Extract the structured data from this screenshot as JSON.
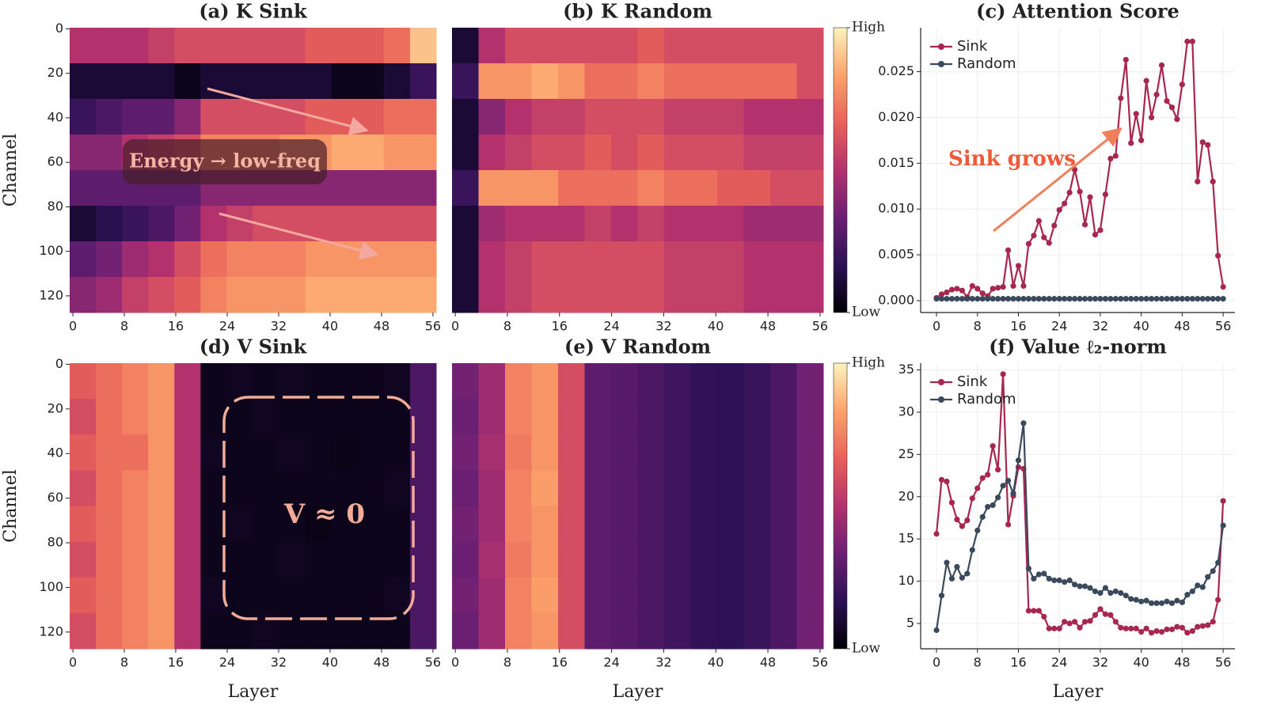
{
  "chart_data": [
    {
      "type": "heatmap",
      "title": "(a) K Sink",
      "ylabel": "Channel",
      "annotation": "Energy → low-freq",
      "xlim": [
        -0.5,
        56.5
      ],
      "ylim": [
        -0.5,
        127.5
      ],
      "y_inverted": true,
      "xticks": [
        0,
        8,
        16,
        24,
        32,
        40,
        48,
        56
      ],
      "yticks": [
        0,
        20,
        40,
        60,
        80,
        100,
        120
      ],
      "zlim": [
        0,
        1
      ],
      "colorscale": [
        "#000004",
        "#2c1155",
        "#6b1f73",
        "#b3326e",
        "#e8615a",
        "#fca26a",
        "#fcf3bd"
      ],
      "z": [
        [
          0.5,
          0.5,
          0.5,
          0.55,
          0.6,
          0.6,
          0.6,
          0.6,
          0.6,
          0.65,
          0.65,
          0.65,
          0.7,
          0.9
        ],
        [
          0.1,
          0.1,
          0.1,
          0.1,
          0.05,
          0.1,
          0.1,
          0.1,
          0.1,
          0.1,
          0.05,
          0.05,
          0.1,
          0.2
        ],
        [
          0.2,
          0.25,
          0.3,
          0.3,
          0.4,
          0.6,
          0.6,
          0.6,
          0.6,
          0.65,
          0.65,
          0.65,
          0.7,
          0.7
        ],
        [
          0.4,
          0.4,
          0.5,
          0.55,
          0.6,
          0.75,
          0.75,
          0.75,
          0.8,
          0.8,
          0.85,
          0.85,
          0.8,
          0.8
        ],
        [
          0.3,
          0.3,
          0.3,
          0.3,
          0.3,
          0.4,
          0.4,
          0.4,
          0.4,
          0.4,
          0.4,
          0.4,
          0.4,
          0.4
        ],
        [
          0.1,
          0.15,
          0.2,
          0.25,
          0.35,
          0.5,
          0.55,
          0.6,
          0.6,
          0.6,
          0.6,
          0.6,
          0.6,
          0.6
        ],
        [
          0.3,
          0.35,
          0.45,
          0.5,
          0.6,
          0.7,
          0.75,
          0.75,
          0.75,
          0.8,
          0.8,
          0.8,
          0.8,
          0.8
        ],
        [
          0.4,
          0.45,
          0.55,
          0.6,
          0.65,
          0.75,
          0.8,
          0.8,
          0.8,
          0.85,
          0.85,
          0.85,
          0.85,
          0.85
        ]
      ]
    },
    {
      "type": "heatmap",
      "title": "(b) K Random",
      "xlim": [
        -0.5,
        56.5
      ],
      "ylim": [
        -0.5,
        127.5
      ],
      "y_inverted": true,
      "xticks": [
        0,
        8,
        16,
        24,
        32,
        40,
        48,
        56
      ],
      "zlim": [
        0,
        1
      ],
      "colorscale": [
        "#000004",
        "#2c1155",
        "#6b1f73",
        "#b3326e",
        "#e8615a",
        "#fca26a",
        "#fcf3bd"
      ],
      "colorbar_ticks": [
        {
          "value": 1,
          "label": "High"
        },
        {
          "value": 0,
          "label": "Low"
        }
      ],
      "z": [
        [
          0.1,
          0.5,
          0.6,
          0.6,
          0.6,
          0.6,
          0.6,
          0.65,
          0.6,
          0.6,
          0.6,
          0.6,
          0.6,
          0.6
        ],
        [
          0.2,
          0.8,
          0.8,
          0.85,
          0.8,
          0.7,
          0.7,
          0.75,
          0.7,
          0.7,
          0.7,
          0.7,
          0.7,
          0.6
        ],
        [
          0.1,
          0.4,
          0.5,
          0.55,
          0.55,
          0.6,
          0.6,
          0.6,
          0.55,
          0.55,
          0.55,
          0.5,
          0.5,
          0.5
        ],
        [
          0.1,
          0.5,
          0.55,
          0.6,
          0.6,
          0.65,
          0.6,
          0.65,
          0.6,
          0.6,
          0.6,
          0.55,
          0.55,
          0.55
        ],
        [
          0.2,
          0.8,
          0.8,
          0.8,
          0.7,
          0.7,
          0.7,
          0.75,
          0.7,
          0.7,
          0.65,
          0.65,
          0.6,
          0.6
        ],
        [
          0.1,
          0.45,
          0.5,
          0.5,
          0.5,
          0.55,
          0.5,
          0.55,
          0.5,
          0.5,
          0.5,
          0.45,
          0.45,
          0.45
        ],
        [
          0.1,
          0.5,
          0.55,
          0.6,
          0.6,
          0.6,
          0.6,
          0.6,
          0.55,
          0.55,
          0.55,
          0.5,
          0.5,
          0.5
        ],
        [
          0.1,
          0.5,
          0.55,
          0.6,
          0.6,
          0.6,
          0.6,
          0.6,
          0.55,
          0.55,
          0.55,
          0.5,
          0.5,
          0.5
        ]
      ]
    },
    {
      "type": "line",
      "title": "(c) Attention Score",
      "annotation": "Sink grows",
      "legend": "upper left",
      "grid": true,
      "xlim": [
        -3.1,
        58.3
      ],
      "ylim": [
        -0.0013,
        0.0298
      ],
      "xticks": [
        0,
        8,
        16,
        24,
        32,
        40,
        48,
        56
      ],
      "yticks": [
        {
          "value": 0,
          "label": "0.000"
        },
        {
          "value": 0.005,
          "label": "0.005"
        },
        {
          "value": 0.01,
          "label": "0.010"
        },
        {
          "value": 0.015,
          "label": "0.015"
        },
        {
          "value": 0.02,
          "label": "0.020"
        },
        {
          "value": 0.025,
          "label": "0.025"
        }
      ],
      "x": [
        0,
        1,
        2,
        3,
        4,
        5,
        6,
        7,
        8,
        9,
        10,
        11,
        12,
        13,
        14,
        15,
        16,
        17,
        18,
        19,
        20,
        21,
        22,
        23,
        24,
        25,
        26,
        27,
        28,
        29,
        30,
        31,
        32,
        33,
        34,
        35,
        36,
        37,
        38,
        39,
        40,
        41,
        42,
        43,
        44,
        45,
        46,
        47,
        48,
        49,
        50,
        51,
        52,
        53,
        54,
        55,
        56
      ],
      "series": [
        {
          "name": "Sink",
          "color": "#a8274e",
          "values": [
            0.0003,
            0.0007,
            0.0009,
            0.0012,
            0.0013,
            0.0011,
            0.0004,
            0.0016,
            0.0013,
            0.0008,
            0.0005,
            0.0013,
            0.0014,
            0.0015,
            0.0055,
            0.0016,
            0.0038,
            0.0016,
            0.0062,
            0.0071,
            0.0087,
            0.0069,
            0.0063,
            0.0082,
            0.0099,
            0.0106,
            0.0118,
            0.0143,
            0.0119,
            0.0083,
            0.0113,
            0.0072,
            0.0077,
            0.0116,
            0.0155,
            0.0158,
            0.0221,
            0.0263,
            0.0172,
            0.0204,
            0.0175,
            0.024,
            0.02,
            0.0225,
            0.0257,
            0.0218,
            0.0211,
            0.0198,
            0.0236,
            0.0283,
            0.0283,
            0.013,
            0.0173,
            0.017,
            0.013,
            0.0049,
            0.0015
          ]
        },
        {
          "name": "Random",
          "color": "#3a4a5c",
          "values": [
            0.0002,
            0.0002,
            0.0002,
            0.0002,
            0.0002,
            0.0002,
            0.0002,
            0.0002,
            0.0002,
            0.0002,
            0.0002,
            0.0002,
            0.0002,
            0.0002,
            0.0002,
            0.0002,
            0.0002,
            0.0002,
            0.0002,
            0.0002,
            0.0002,
            0.0002,
            0.0002,
            0.0002,
            0.0002,
            0.0002,
            0.0002,
            0.0002,
            0.0002,
            0.0002,
            0.0002,
            0.0002,
            0.0002,
            0.0002,
            0.0002,
            0.0002,
            0.0002,
            0.0002,
            0.0002,
            0.0002,
            0.0002,
            0.0002,
            0.0002,
            0.0002,
            0.0002,
            0.0002,
            0.0002,
            0.0002,
            0.0002,
            0.0002,
            0.0002,
            0.0002,
            0.0002,
            0.0002,
            0.0002,
            0.0002,
            0.0002
          ]
        }
      ]
    },
    {
      "type": "heatmap",
      "title": "(d) V Sink",
      "ylabel": "Channel",
      "xlabel": "Layer",
      "annotation": "V ≈ 0",
      "xlim": [
        -0.5,
        56.5
      ],
      "ylim": [
        -0.5,
        127.5
      ],
      "y_inverted": true,
      "xticks": [
        0,
        8,
        16,
        24,
        32,
        40,
        48,
        56
      ],
      "yticks": [
        0,
        20,
        40,
        60,
        80,
        100,
        120
      ],
      "zlim": [
        0,
        1
      ],
      "colorscale": [
        "#000004",
        "#2c1155",
        "#6b1f73",
        "#b3326e",
        "#e8615a",
        "#fca26a",
        "#fcf3bd"
      ],
      "z": [
        [
          0.65,
          0.7,
          0.75,
          0.8,
          0.5,
          0.05,
          0.06,
          0.05,
          0.06,
          0.05,
          0.05,
          0.05,
          0.06,
          0.25
        ],
        [
          0.6,
          0.7,
          0.75,
          0.8,
          0.5,
          0.05,
          0.05,
          0.06,
          0.05,
          0.05,
          0.05,
          0.05,
          0.05,
          0.25
        ],
        [
          0.65,
          0.7,
          0.7,
          0.8,
          0.5,
          0.06,
          0.05,
          0.05,
          0.06,
          0.05,
          0.04,
          0.05,
          0.05,
          0.25
        ],
        [
          0.6,
          0.7,
          0.75,
          0.8,
          0.5,
          0.05,
          0.05,
          0.05,
          0.05,
          0.05,
          0.05,
          0.05,
          0.06,
          0.25
        ],
        [
          0.65,
          0.7,
          0.75,
          0.8,
          0.5,
          0.05,
          0.06,
          0.05,
          0.05,
          0.04,
          0.05,
          0.05,
          0.05,
          0.25
        ],
        [
          0.6,
          0.7,
          0.75,
          0.8,
          0.5,
          0.05,
          0.05,
          0.05,
          0.06,
          0.05,
          0.05,
          0.05,
          0.05,
          0.25
        ],
        [
          0.65,
          0.7,
          0.75,
          0.8,
          0.5,
          0.06,
          0.05,
          0.05,
          0.05,
          0.05,
          0.05,
          0.05,
          0.06,
          0.25
        ],
        [
          0.6,
          0.7,
          0.75,
          0.8,
          0.5,
          0.05,
          0.05,
          0.06,
          0.05,
          0.05,
          0.05,
          0.05,
          0.05,
          0.25
        ]
      ]
    },
    {
      "type": "heatmap",
      "title": "(e) V Random",
      "xlabel": "Layer",
      "xlim": [
        -0.5,
        56.5
      ],
      "ylim": [
        -0.5,
        127.5
      ],
      "y_inverted": true,
      "xticks": [
        0,
        8,
        16,
        24,
        32,
        40,
        48,
        56
      ],
      "zlim": [
        0,
        1
      ],
      "colorscale": [
        "#000004",
        "#2c1155",
        "#6b1f73",
        "#b3326e",
        "#e8615a",
        "#fca26a",
        "#fcf3bd"
      ],
      "colorbar_ticks": [
        {
          "value": 1,
          "label": "High"
        },
        {
          "value": 0,
          "label": "Low"
        }
      ],
      "z": [
        [
          0.35,
          0.45,
          0.75,
          0.8,
          0.6,
          0.3,
          0.28,
          0.25,
          0.22,
          0.18,
          0.17,
          0.2,
          0.25,
          0.35
        ],
        [
          0.33,
          0.45,
          0.75,
          0.8,
          0.6,
          0.3,
          0.28,
          0.25,
          0.22,
          0.18,
          0.17,
          0.2,
          0.25,
          0.35
        ],
        [
          0.35,
          0.47,
          0.73,
          0.8,
          0.6,
          0.3,
          0.28,
          0.25,
          0.22,
          0.18,
          0.17,
          0.2,
          0.25,
          0.35
        ],
        [
          0.33,
          0.45,
          0.75,
          0.82,
          0.6,
          0.3,
          0.28,
          0.25,
          0.22,
          0.18,
          0.17,
          0.2,
          0.25,
          0.35
        ],
        [
          0.35,
          0.45,
          0.75,
          0.8,
          0.6,
          0.3,
          0.28,
          0.25,
          0.22,
          0.18,
          0.17,
          0.2,
          0.25,
          0.35
        ],
        [
          0.33,
          0.47,
          0.73,
          0.8,
          0.6,
          0.3,
          0.28,
          0.25,
          0.22,
          0.18,
          0.17,
          0.2,
          0.25,
          0.35
        ],
        [
          0.35,
          0.45,
          0.75,
          0.82,
          0.6,
          0.3,
          0.28,
          0.25,
          0.22,
          0.18,
          0.17,
          0.2,
          0.25,
          0.35
        ],
        [
          0.33,
          0.45,
          0.75,
          0.8,
          0.6,
          0.3,
          0.28,
          0.25,
          0.22,
          0.18,
          0.17,
          0.2,
          0.25,
          0.35
        ]
      ]
    },
    {
      "type": "line",
      "title": "(f) Value  ℓ₂-norm",
      "xlabel": "Layer",
      "legend": "upper left",
      "grid": true,
      "xlim": [
        -3.1,
        58.3
      ],
      "ylim": [
        2,
        35.8
      ],
      "xticks": [
        0,
        8,
        16,
        24,
        32,
        40,
        48,
        56
      ],
      "yticks": [
        5,
        10,
        15,
        20,
        25,
        30,
        35
      ],
      "x": [
        0,
        1,
        2,
        3,
        4,
        5,
        6,
        7,
        8,
        9,
        10,
        11,
        12,
        13,
        14,
        15,
        16,
        17,
        18,
        19,
        20,
        21,
        22,
        23,
        24,
        25,
        26,
        27,
        28,
        29,
        30,
        31,
        32,
        33,
        34,
        35,
        36,
        37,
        38,
        39,
        40,
        41,
        42,
        43,
        44,
        45,
        46,
        47,
        48,
        49,
        50,
        51,
        52,
        53,
        54,
        55,
        56
      ],
      "series": [
        {
          "name": "Sink",
          "color": "#a8274e",
          "values": [
            15.6,
            22,
            21.8,
            19.3,
            17.3,
            16.5,
            17.2,
            19.8,
            21,
            22.2,
            22.6,
            26,
            23.2,
            34.5,
            16.7,
            20.1,
            23.5,
            23.3,
            6.5,
            6.5,
            6.5,
            5.8,
            4.4,
            4.4,
            4.4,
            5.2,
            5,
            5.2,
            4.5,
            5.2,
            5.3,
            6,
            6.7,
            6.1,
            6,
            5.2,
            4.5,
            4.4,
            4.4,
            4.4,
            4,
            4.4,
            3.9,
            4.1,
            4,
            4.3,
            4.3,
            4.6,
            4.5,
            3.9,
            4.1,
            4.6,
            4.7,
            4.8,
            5.2,
            7.8,
            19.5
          ]
        },
        {
          "name": "Random",
          "color": "#3a4a5c",
          "values": [
            4.2,
            8.3,
            12.2,
            10.3,
            11.7,
            10.4,
            10.9,
            13.7,
            16,
            17.6,
            18.8,
            19,
            19.9,
            21.3,
            21.9,
            20.4,
            24.3,
            28.7,
            11.5,
            10.3,
            10.8,
            10.9,
            10.3,
            10.1,
            10.1,
            9.9,
            10.1,
            9.6,
            9.4,
            9.4,
            9.2,
            8.8,
            8.6,
            9.2,
            8.6,
            8.8,
            8.6,
            8.3,
            7.9,
            7.8,
            7.6,
            7.7,
            7.4,
            7.4,
            7.4,
            7.6,
            7.4,
            7.7,
            7.5,
            8.4,
            8.8,
            9.5,
            9.3,
            10.5,
            11.2,
            12.2,
            16.6
          ]
        }
      ]
    }
  ]
}
